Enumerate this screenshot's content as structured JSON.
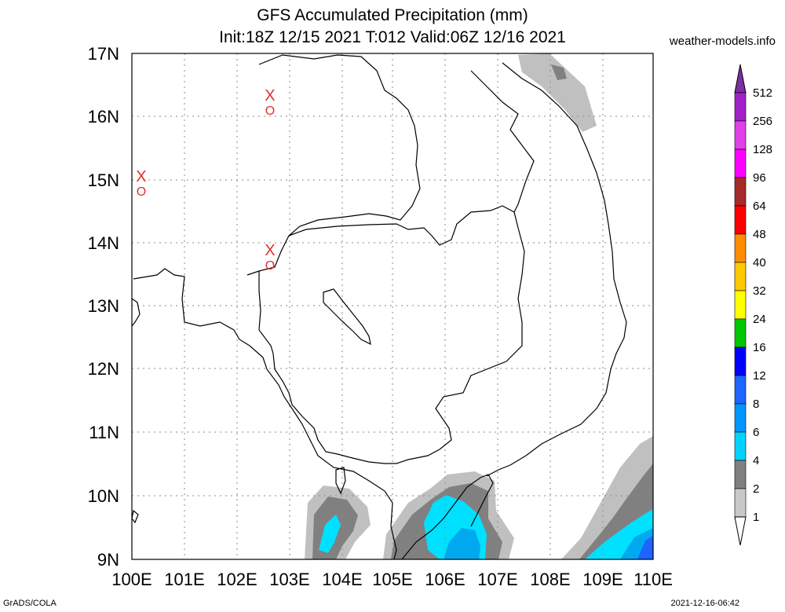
{
  "title": {
    "line1": "GFS Accumulated Precipitation (mm)",
    "line2": "Init:18Z 12/15 2021 T:012 Valid:06Z 12/16 2021"
  },
  "site": "weather-models.info",
  "footer": {
    "left": "GrADS/COLA",
    "right": "2021-12-16-06:42"
  },
  "map": {
    "lon_range": [
      100,
      110
    ],
    "lat_range": [
      9,
      17
    ],
    "lat_labels": [
      "17N",
      "16N",
      "15N",
      "14N",
      "13N",
      "12N",
      "11N",
      "10N",
      "9N"
    ],
    "lon_labels": [
      "100E",
      "101E",
      "102E",
      "103E",
      "104E",
      "105E",
      "106E",
      "107E",
      "108E",
      "109E",
      "110E"
    ],
    "markers": [
      {
        "lon": 100.18,
        "lat": 15.05,
        "symbol": "X",
        "label": "O"
      },
      {
        "lon": 102.65,
        "lat": 16.33,
        "symbol": "X",
        "label": "O"
      },
      {
        "lon": 102.65,
        "lat": 13.88,
        "symbol": "X",
        "label": "O"
      }
    ],
    "marker_color": "#e03030"
  },
  "legend": {
    "levels": [
      "512",
      "256",
      "128",
      "96",
      "64",
      "48",
      "40",
      "32",
      "24",
      "16",
      "12",
      "8",
      "6",
      "4",
      "2",
      "1"
    ],
    "colors": [
      "#7d2ea0",
      "#a020c8",
      "#e040e8",
      "#ff00ff",
      "#a52a2a",
      "#ff0000",
      "#ff8c00",
      "#ffc800",
      "#ffff00",
      "#00c800",
      "#0000ff",
      "#1e64ff",
      "#0096ff",
      "#00d2ff",
      "#808080",
      "#c8c8c8",
      "#ffffff"
    ]
  },
  "precip_colors": {
    "p1": "#c0c0c0",
    "p2": "#808080",
    "p4": "#00e0ff",
    "p6": "#00a8f0",
    "p8": "#1e64ff"
  }
}
